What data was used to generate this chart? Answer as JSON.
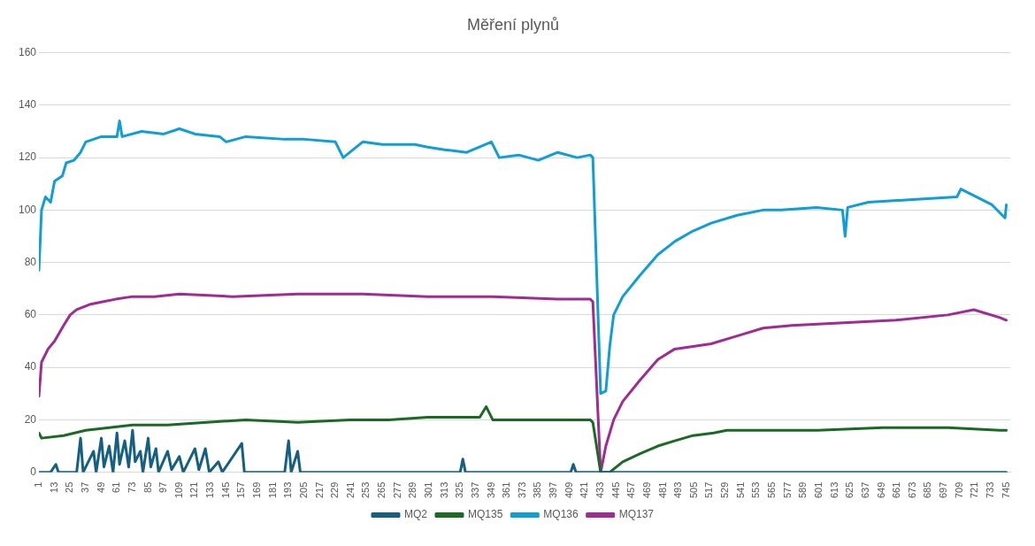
{
  "chart_data": {
    "type": "line",
    "title": "Měření plynů",
    "xlim": [
      1,
      748
    ],
    "ylim": [
      0,
      160
    ],
    "yticks": [
      0,
      20,
      40,
      60,
      80,
      100,
      120,
      140,
      160
    ],
    "xticks": [
      1,
      13,
      25,
      37,
      49,
      61,
      73,
      85,
      97,
      109,
      121,
      133,
      145,
      157,
      169,
      181,
      193,
      205,
      217,
      229,
      241,
      253,
      265,
      277,
      289,
      301,
      313,
      325,
      337,
      349,
      361,
      373,
      385,
      397,
      409,
      421,
      433,
      445,
      457,
      469,
      481,
      493,
      505,
      517,
      529,
      541,
      553,
      565,
      577,
      589,
      601,
      613,
      625,
      637,
      649,
      661,
      673,
      685,
      697,
      709,
      721,
      733,
      745
    ],
    "grid": "y",
    "legend": "bottom",
    "marker": "none",
    "line_style": "solid",
    "series": [
      {
        "name": "MQ2",
        "color": "#156082",
        "x": [
          1,
          10,
          14,
          16,
          30,
          33,
          35,
          43,
          45,
          49,
          51,
          55,
          58,
          61,
          63,
          67,
          70,
          73,
          75,
          79,
          81,
          85,
          87,
          91,
          93,
          100,
          103,
          109,
          112,
          121,
          124,
          129,
          132,
          139,
          142,
          157,
          159,
          190,
          193,
          195,
          200,
          202,
          325,
          327,
          329,
          410,
          412,
          414,
          745
        ],
        "values": [
          0,
          0,
          3,
          0,
          0,
          13,
          0,
          8,
          0,
          13,
          2,
          10,
          0,
          15,
          3,
          12,
          2,
          16,
          4,
          8,
          0,
          13,
          2,
          9,
          0,
          8,
          1,
          6,
          0,
          9,
          1,
          9,
          0,
          4,
          0,
          11,
          0,
          0,
          12,
          0,
          8,
          0,
          0,
          5,
          0,
          0,
          3,
          0,
          0
        ]
      },
      {
        "name": "MQ135",
        "color": "#196b24",
        "x": [
          1,
          3,
          20,
          37,
          73,
          100,
          130,
          160,
          200,
          240,
          270,
          300,
          340,
          345,
          350,
          400,
          425,
          427,
          433,
          440,
          450,
          463,
          477,
          490,
          504,
          520,
          530,
          600,
          650,
          700,
          740,
          745
        ],
        "values": [
          15,
          13,
          14,
          16,
          18,
          18,
          19,
          20,
          19,
          20,
          20,
          21,
          21,
          25,
          20,
          20,
          20,
          19,
          0,
          0,
          4,
          7,
          10,
          12,
          14,
          15,
          16,
          16,
          17,
          17,
          16,
          16
        ]
      },
      {
        "name": "MQ136",
        "color": "#0f9ed5",
        "x": [
          1,
          3,
          6,
          10,
          13,
          19,
          22,
          28,
          33,
          37,
          43,
          49,
          61,
          63,
          65,
          80,
          97,
          109,
          121,
          140,
          145,
          160,
          190,
          205,
          229,
          235,
          250,
          265,
          290,
          300,
          313,
          330,
          349,
          355,
          370,
          385,
          400,
          415,
          425,
          427,
          433,
          437,
          440,
          443,
          450,
          463,
          477,
          490,
          504,
          518,
          538,
          558,
          572,
          599,
          619,
          621,
          623,
          639,
          673,
          707,
          710,
          734,
          744,
          745
        ],
        "values": [
          77,
          100,
          105,
          103,
          111,
          113,
          118,
          119,
          122,
          126,
          127,
          128,
          128,
          134,
          128,
          130,
          129,
          131,
          129,
          128,
          126,
          128,
          127,
          127,
          126,
          120,
          126,
          125,
          125,
          124,
          123,
          122,
          126,
          120,
          121,
          119,
          122,
          120,
          121,
          120,
          30,
          31,
          48,
          60,
          67,
          75,
          83,
          88,
          92,
          95,
          98,
          100,
          100,
          101,
          100,
          90,
          101,
          103,
          104,
          105,
          108,
          102,
          97,
          102
        ]
      },
      {
        "name": "MQ137",
        "color": "#a02b93",
        "x": [
          1,
          3,
          8,
          13,
          20,
          25,
          30,
          40,
          50,
          60,
          73,
          90,
          109,
          150,
          200,
          250,
          300,
          350,
          400,
          425,
          427,
          433,
          437,
          443,
          450,
          463,
          477,
          490,
          504,
          518,
          538,
          558,
          580,
          620,
          660,
          700,
          720,
          740,
          745
        ],
        "values": [
          29,
          42,
          47,
          50,
          56,
          60,
          62,
          64,
          65,
          66,
          67,
          67,
          68,
          67,
          68,
          68,
          67,
          67,
          66,
          66,
          65,
          0,
          10,
          20,
          27,
          35,
          43,
          47,
          48,
          49,
          52,
          55,
          56,
          57,
          58,
          60,
          62,
          59,
          58
        ]
      }
    ]
  }
}
